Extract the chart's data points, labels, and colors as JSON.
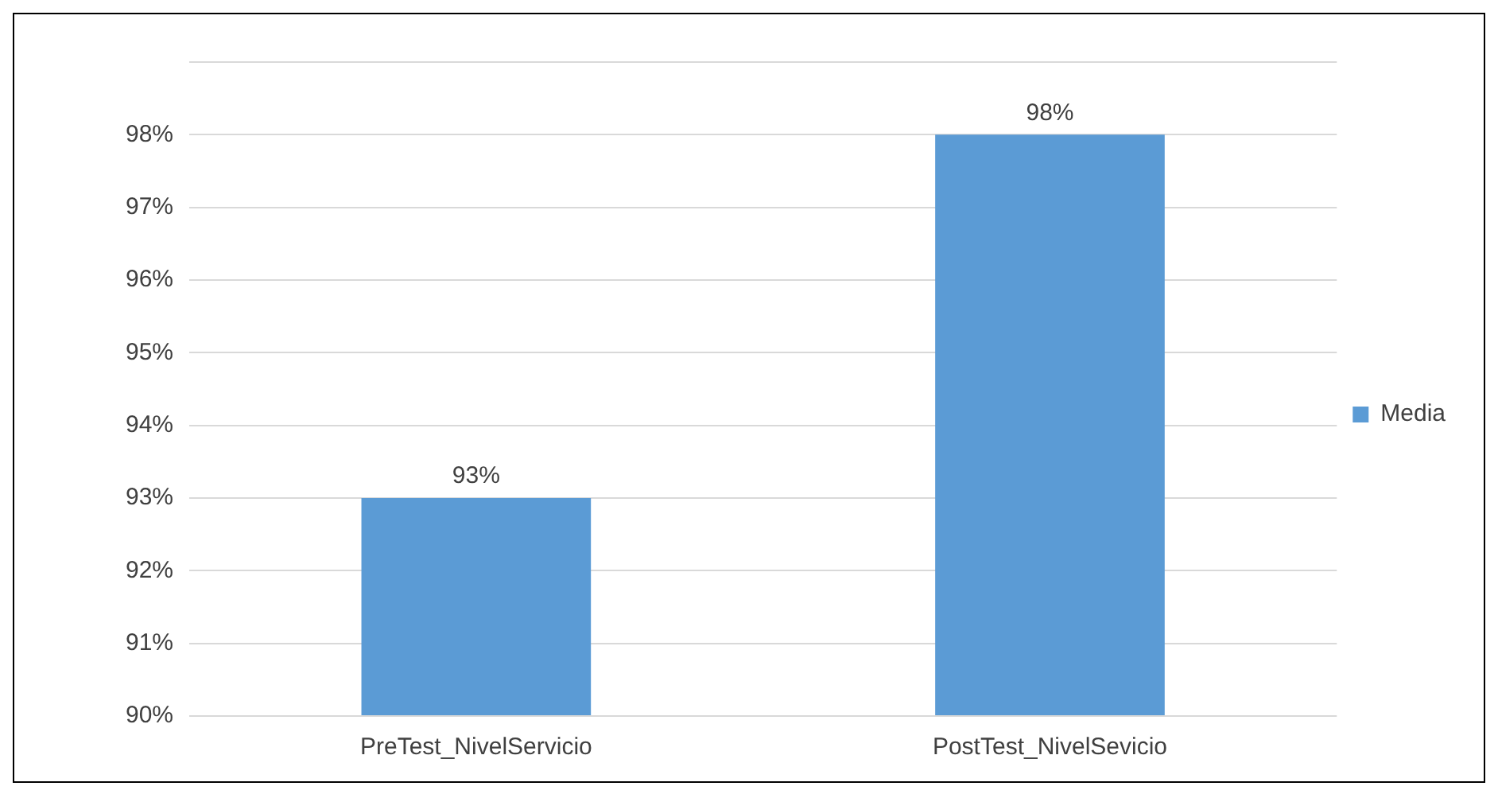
{
  "chart_data": {
    "type": "bar",
    "categories": [
      "PreTest_NivelServicio",
      "PostTest_NivelSevicio"
    ],
    "series": [
      {
        "name": "Media",
        "color": "#5b9bd5",
        "values": [
          93,
          98
        ],
        "value_labels": [
          "93%",
          "98%"
        ]
      }
    ],
    "ylim": [
      90,
      99
    ],
    "yticks": [
      {
        "value": 90,
        "label": "90%"
      },
      {
        "value": 91,
        "label": "91%"
      },
      {
        "value": 92,
        "label": "92%"
      },
      {
        "value": 93,
        "label": "93%"
      },
      {
        "value": 94,
        "label": "94%"
      },
      {
        "value": 95,
        "label": "95%"
      },
      {
        "value": 96,
        "label": "96%"
      },
      {
        "value": 97,
        "label": "97%"
      },
      {
        "value": 98,
        "label": "98%"
      },
      {
        "value": 99,
        "label": null
      }
    ],
    "grid": "y",
    "legend": "right"
  }
}
